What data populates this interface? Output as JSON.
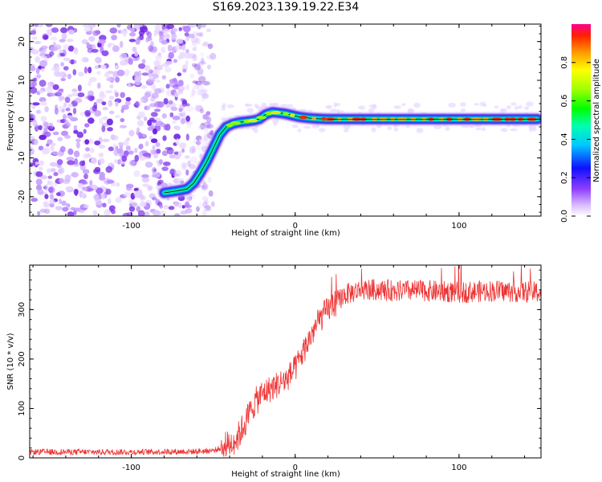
{
  "title": "S169.2023.139.19.22.E34",
  "chart_data": [
    {
      "type": "heatmap",
      "xlabel": "Height of straight line (km)",
      "ylabel": "Frequency (Hz)",
      "xlim": [
        -162,
        150
      ],
      "ylim": [
        -25,
        24.5
      ],
      "x_ticks": [
        -100,
        0,
        100
      ],
      "y_ticks": [
        -20,
        -10,
        0,
        10,
        20
      ],
      "noise_region_x": [
        -162,
        -55
      ],
      "ridge_x": [
        -80,
        -72,
        -66,
        -62,
        -58,
        -54,
        -50,
        -46,
        -42,
        -38,
        -34,
        -30,
        -26,
        -22,
        -18,
        -14,
        -10,
        -6,
        -2,
        2,
        6,
        10,
        14,
        18,
        20,
        40,
        60,
        80,
        100,
        120,
        148
      ],
      "ridge_freq": [
        -19,
        -18.5,
        -18,
        -16.5,
        -14,
        -11,
        -7.5,
        -4,
        -2,
        -1.2,
        -0.8,
        -0.6,
        -0.4,
        0,
        1.2,
        1.8,
        1.6,
        1.4,
        1.0,
        0.6,
        0.4,
        0.2,
        0.1,
        0.05,
        0,
        0,
        0,
        0,
        0,
        0,
        0
      ],
      "colorbar": {
        "label": "Normalized spectral amplitude",
        "range": [
          0,
          1
        ],
        "ticks": [
          "0.0",
          "0.2",
          "0.4",
          "0.6",
          "0.8"
        ]
      }
    },
    {
      "type": "line",
      "xlabel": "Height of straight line (km)",
      "ylabel": "SNR (10 * v/v)",
      "xlim": [
        -162,
        150
      ],
      "ylim": [
        0,
        390
      ],
      "x_ticks": [
        -100,
        0,
        100
      ],
      "y_ticks": [
        0,
        100,
        200,
        300
      ],
      "series_color": "#ee3333",
      "envelope_x": [
        -162,
        -100,
        -60,
        -50,
        -45,
        -40,
        -35,
        -30,
        -25,
        -20,
        -15,
        -10,
        -5,
        0,
        5,
        10,
        15,
        20,
        25,
        30,
        40,
        50,
        60,
        80,
        100,
        120,
        150
      ],
      "envelope_y": [
        12,
        12,
        13,
        15,
        20,
        28,
        42,
        75,
        110,
        130,
        140,
        150,
        160,
        180,
        215,
        250,
        280,
        300,
        315,
        330,
        340,
        340,
        338,
        338,
        335,
        338,
        335
      ]
    }
  ]
}
